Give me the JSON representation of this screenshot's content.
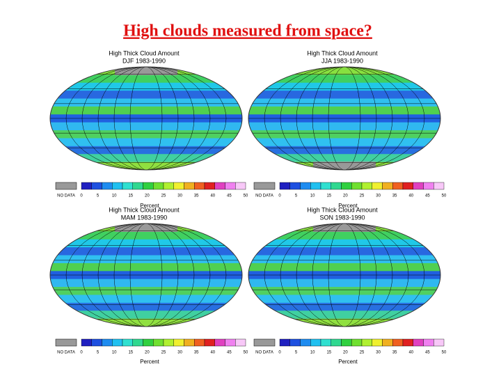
{
  "header": {
    "title": "High clouds measured from space?"
  },
  "panels": [
    {
      "title": "High Thick Cloud Amount",
      "period": "DJF 1983-1990"
    },
    {
      "title": "High Thick Cloud Amount",
      "period": "JJA 1983-1990"
    },
    {
      "title": "High Thick Cloud Amount",
      "period": "MAM 1983-1990"
    },
    {
      "title": "High Thick Cloud Amount",
      "period": "SON 1983-1990"
    }
  ],
  "colorbar": {
    "no_data": "NO DATA",
    "ticks": [
      "0",
      "5",
      "10",
      "15",
      "20",
      "25",
      "30",
      "35",
      "40",
      "45",
      "50"
    ],
    "unit": "Percent"
  }
}
